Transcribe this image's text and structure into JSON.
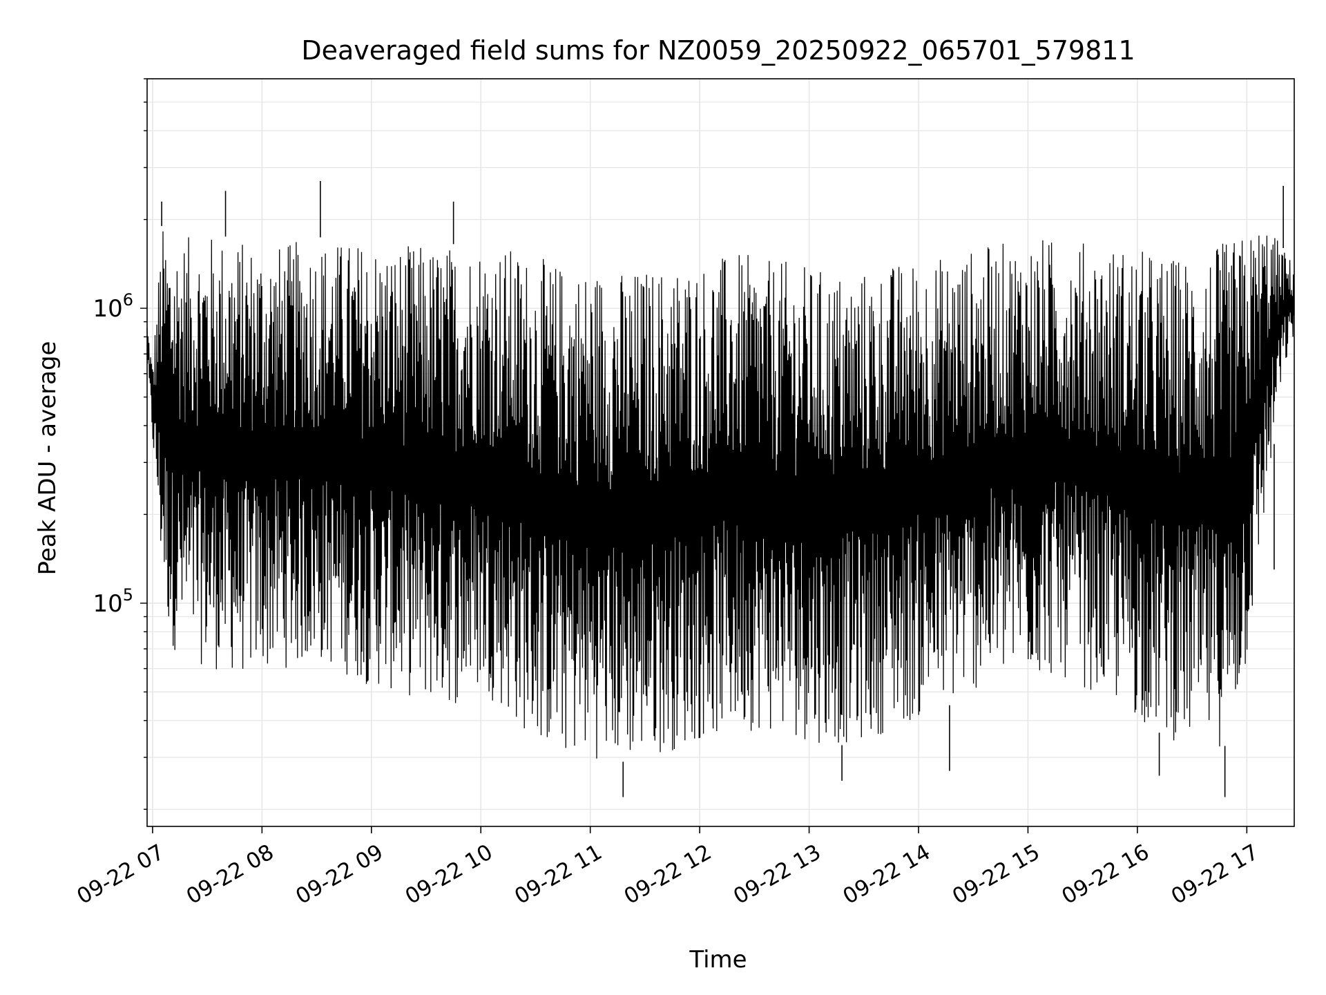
{
  "chart_data": {
    "type": "line",
    "title": "Deaveraged field sums for NZ0059_20250922_065701_579811",
    "xlabel": "Time",
    "ylabel": "Peak ADU - average",
    "y_scale": "log",
    "ylim": [
      17500,
      6000000
    ],
    "xlim": [
      "2025-09-22 06:57",
      "2025-09-22 17:26"
    ],
    "x_ticks": [
      "09-22 07",
      "09-22 08",
      "09-22 09",
      "09-22 10",
      "09-22 11",
      "09-22 12",
      "09-22 13",
      "09-22 14",
      "09-22 15",
      "09-22 16",
      "09-22 17"
    ],
    "x_tick_values": [
      "2025-09-22 07:00",
      "2025-09-22 08:00",
      "2025-09-22 09:00",
      "2025-09-22 10:00",
      "2025-09-22 11:00",
      "2025-09-22 12:00",
      "2025-09-22 13:00",
      "2025-09-22 14:00",
      "2025-09-22 15:00",
      "2025-09-22 16:00",
      "2025-09-22 17:00"
    ],
    "y_ticks": [
      {
        "value": 100000,
        "base": "10",
        "exp": "5"
      },
      {
        "value": 1000000,
        "base": "10",
        "exp": "6"
      }
    ],
    "grid": true,
    "line_color": "#000000",
    "grid_color": "#e6e6e6",
    "series": [
      {
        "x": [
          "2025-09-22 06:57",
          "2025-09-22 07:00",
          "2025-09-22 07:05",
          "2025-09-22 07:10",
          "2025-09-22 07:20",
          "2025-09-22 07:30",
          "2025-09-22 07:40",
          "2025-09-22 07:50",
          "2025-09-22 08:00",
          "2025-09-22 08:10",
          "2025-09-22 08:20",
          "2025-09-22 08:30",
          "2025-09-22 08:40",
          "2025-09-22 08:50",
          "2025-09-22 09:00",
          "2025-09-22 09:10",
          "2025-09-22 09:20",
          "2025-09-22 09:30",
          "2025-09-22 09:40",
          "2025-09-22 09:50",
          "2025-09-22 10:00",
          "2025-09-22 10:10",
          "2025-09-22 10:20",
          "2025-09-22 10:30",
          "2025-09-22 10:40",
          "2025-09-22 10:50",
          "2025-09-22 11:00",
          "2025-09-22 11:10",
          "2025-09-22 11:20",
          "2025-09-22 11:30",
          "2025-09-22 11:40",
          "2025-09-22 11:50",
          "2025-09-22 12:00",
          "2025-09-22 12:10",
          "2025-09-22 12:20",
          "2025-09-22 12:30",
          "2025-09-22 12:40",
          "2025-09-22 12:50",
          "2025-09-22 13:00",
          "2025-09-22 13:10",
          "2025-09-22 13:20",
          "2025-09-22 13:30",
          "2025-09-22 13:40",
          "2025-09-22 13:50",
          "2025-09-22 14:00",
          "2025-09-22 14:10",
          "2025-09-22 14:20",
          "2025-09-22 14:30",
          "2025-09-22 14:40",
          "2025-09-22 14:50",
          "2025-09-22 15:00",
          "2025-09-22 15:10",
          "2025-09-22 15:20",
          "2025-09-22 15:30",
          "2025-09-22 15:40",
          "2025-09-22 15:50",
          "2025-09-22 16:00",
          "2025-09-22 16:10",
          "2025-09-22 16:20",
          "2025-09-22 16:30",
          "2025-09-22 16:40",
          "2025-09-22 16:50",
          "2025-09-22 17:00",
          "2025-09-22 17:10",
          "2025-09-22 17:20",
          "2025-09-22 17:26"
        ],
        "upper": [
          900000,
          650000,
          1900000,
          1800000,
          1750000,
          1800000,
          1750000,
          1700000,
          1700000,
          1650000,
          1700000,
          1750000,
          1700000,
          1700000,
          1700000,
          1650000,
          1650000,
          1650000,
          1650000,
          1650000,
          1700000,
          1650000,
          1600000,
          1500000,
          1450000,
          1400000,
          1400000,
          1380000,
          1350000,
          1380000,
          1400000,
          1450000,
          1450000,
          1500000,
          1550000,
          1500000,
          1450000,
          1450000,
          1400000,
          1350000,
          1350000,
          1350000,
          1400000,
          1450000,
          1500000,
          1500000,
          1550000,
          1600000,
          1650000,
          1700000,
          1750000,
          1750000,
          1700000,
          1700000,
          1650000,
          1650000,
          1600000,
          1550000,
          1500000,
          1550000,
          1600000,
          1700000,
          1800000,
          2000000,
          1600000,
          1400000
        ],
        "lower": [
          650000,
          350000,
          120000,
          70000,
          65000,
          60000,
          58000,
          57000,
          58000,
          60000,
          60000,
          62000,
          60000,
          55000,
          52000,
          50000,
          48000,
          46000,
          45000,
          45000,
          50000,
          45000,
          38000,
          34000,
          31000,
          30000,
          30000,
          29000,
          29000,
          30000,
          31000,
          32000,
          34000,
          35000,
          36000,
          37000,
          36000,
          35000,
          34000,
          33000,
          33000,
          34000,
          36000,
          38000,
          40000,
          43000,
          46000,
          50000,
          52000,
          55000,
          56000,
          56000,
          55000,
          52000,
          48000,
          44000,
          40000,
          37000,
          34000,
          33000,
          32000,
          33000,
          60000,
          200000,
          600000,
          800000
        ],
        "spikes": [
          {
            "x": "2025-09-22 07:05",
            "y": 2300000
          },
          {
            "x": "2025-09-22 07:40",
            "y": 2500000
          },
          {
            "x": "2025-09-22 08:32",
            "y": 2700000
          },
          {
            "x": "2025-09-22 09:45",
            "y": 2300000
          },
          {
            "x": "2025-09-22 11:18",
            "y": 22000
          },
          {
            "x": "2025-09-22 13:18",
            "y": 25000
          },
          {
            "x": "2025-09-22 14:17",
            "y": 27000
          },
          {
            "x": "2025-09-22 16:12",
            "y": 26000
          },
          {
            "x": "2025-09-22 16:48",
            "y": 22000
          },
          {
            "x": "2025-09-22 17:20",
            "y": 2600000
          },
          {
            "x": "2025-09-22 17:15",
            "y": 130000
          }
        ]
      }
    ]
  }
}
